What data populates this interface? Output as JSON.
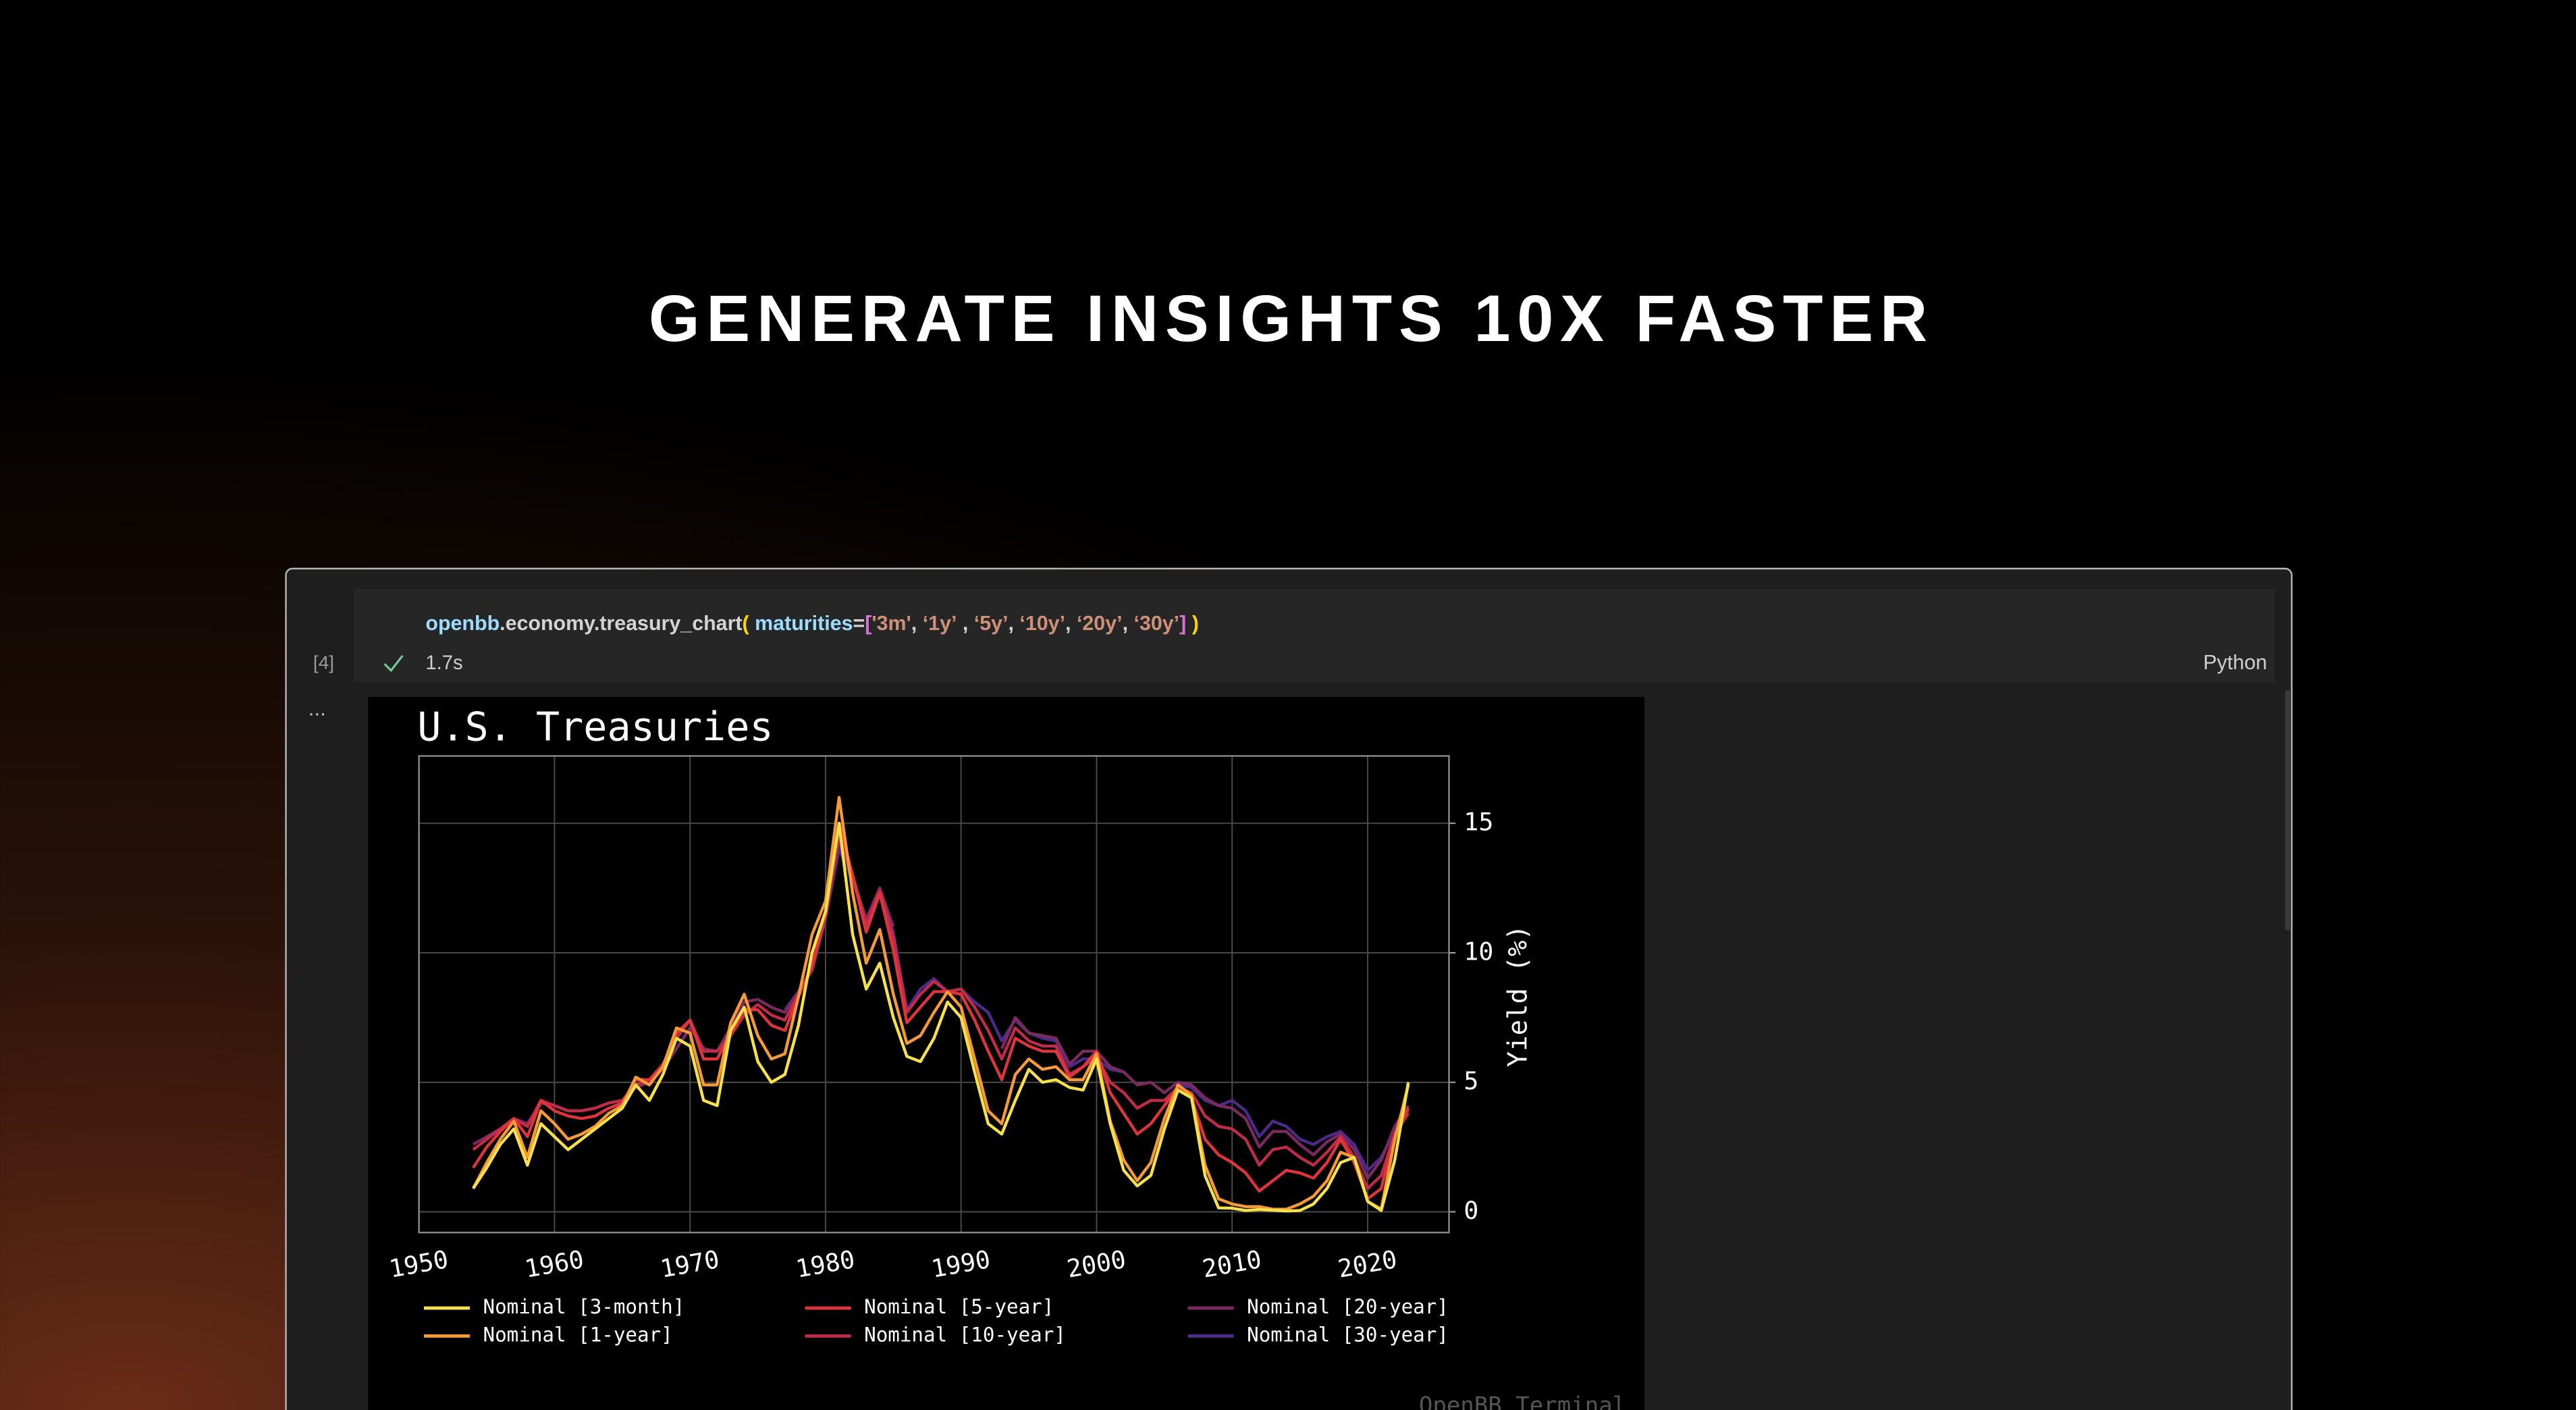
{
  "headline": "GENERATE INSIGHTS 10X FASTER",
  "cell": {
    "number": "[4]",
    "code": [
      "openbb",
      ".economy.treasury_chart",
      "(",
      " maturities",
      "=",
      "[",
      "'3m'",
      ", ",
      "‘1y’",
      " , ",
      "‘5y’",
      ", ",
      "‘10y’",
      ", ",
      "‘20y’",
      ", ",
      "‘30y’",
      "]",
      " )"
    ],
    "duration": "1.7s",
    "language": "Python",
    "output_marker": "...",
    "watermark": "OpenBB Terminal"
  },
  "chart_data": {
    "type": "line",
    "title": "U.S. Treasuries",
    "y_label": "Yield (%)",
    "xlim": [
      1950,
      2026
    ],
    "xticks": [
      1950,
      1960,
      1970,
      1980,
      1990,
      2000,
      2010,
      2020
    ],
    "ylim": [
      -0.8,
      17.6
    ],
    "yticks": [
      0,
      5,
      10,
      15
    ],
    "grid": true,
    "x": [
      1954,
      1955,
      1956,
      1957,
      1958,
      1959,
      1960,
      1961,
      1962,
      1963,
      1964,
      1965,
      1966,
      1967,
      1968,
      1969,
      1970,
      1971,
      1972,
      1973,
      1974,
      1975,
      1976,
      1977,
      1978,
      1979,
      1980,
      1981,
      1982,
      1983,
      1984,
      1985,
      1986,
      1987,
      1988,
      1989,
      1990,
      1991,
      1992,
      1993,
      1994,
      1995,
      1996,
      1997,
      1998,
      1999,
      2000,
      2001,
      2002,
      2003,
      2004,
      2005,
      2006,
      2007,
      2008,
      2009,
      2010,
      2011,
      2012,
      2013,
      2014,
      2015,
      2016,
      2017,
      2018,
      2019,
      2020,
      2021,
      2022,
      2023
    ],
    "series": [
      {
        "name": "Nominal [3-month]",
        "color": "#f7e14b",
        "values": [
          0.9,
          1.7,
          2.6,
          3.2,
          1.8,
          3.4,
          2.9,
          2.4,
          2.8,
          3.2,
          3.6,
          4.0,
          4.9,
          4.3,
          5.3,
          6.7,
          6.4,
          4.3,
          4.1,
          7.0,
          7.9,
          5.8,
          5.0,
          5.3,
          7.2,
          10.0,
          11.6,
          15.0,
          10.7,
          8.6,
          9.6,
          7.5,
          6.0,
          5.8,
          6.7,
          8.1,
          7.5,
          5.4,
          3.4,
          3.0,
          4.3,
          5.5,
          5.0,
          5.1,
          4.8,
          4.7,
          5.9,
          3.4,
          1.6,
          1.0,
          1.4,
          3.2,
          4.7,
          4.4,
          1.4,
          0.15,
          0.14,
          0.05,
          0.09,
          0.06,
          0.03,
          0.05,
          0.3,
          0.9,
          1.9,
          2.1,
          0.4,
          0.05,
          2.0,
          5.0
        ]
      },
      {
        "name": "Nominal [1-year]",
        "color": "#f59a36",
        "values": [
          0.9,
          1.9,
          2.8,
          3.5,
          2.1,
          3.9,
          3.4,
          2.8,
          3.0,
          3.3,
          3.8,
          4.1,
          5.2,
          4.9,
          5.6,
          7.1,
          6.9,
          4.9,
          4.9,
          7.3,
          8.4,
          6.8,
          5.9,
          6.1,
          8.3,
          10.7,
          12.0,
          16.0,
          12.3,
          9.6,
          10.9,
          8.4,
          6.5,
          6.8,
          7.7,
          8.5,
          7.9,
          5.9,
          3.9,
          3.4,
          5.3,
          5.9,
          5.5,
          5.6,
          5.1,
          5.1,
          6.1,
          3.5,
          2.0,
          1.2,
          1.9,
          3.6,
          4.9,
          4.5,
          1.8,
          0.5,
          0.3,
          0.2,
          0.2,
          0.1,
          0.1,
          0.3,
          0.6,
          1.2,
          2.3,
          2.1,
          0.4,
          0.1,
          2.8,
          4.9
        ]
      },
      {
        "name": "Nominal [5-year]",
        "color": "#e0343c",
        "values": [
          1.7,
          2.5,
          3.1,
          3.6,
          2.9,
          4.3,
          3.9,
          3.7,
          3.6,
          3.7,
          4.0,
          4.2,
          5.1,
          5.1,
          5.6,
          6.9,
          7.4,
          5.9,
          5.9,
          6.9,
          7.8,
          7.8,
          7.2,
          7.0,
          8.3,
          9.5,
          11.5,
          15.0,
          13.0,
          10.8,
          12.3,
          10.1,
          7.3,
          7.9,
          8.5,
          8.5,
          8.4,
          7.4,
          6.2,
          5.1,
          6.7,
          6.4,
          6.2,
          6.2,
          5.2,
          5.6,
          6.2,
          4.6,
          3.8,
          3.0,
          3.4,
          4.1,
          4.8,
          4.4,
          2.8,
          2.2,
          1.9,
          1.5,
          0.8,
          1.2,
          1.6,
          1.5,
          1.3,
          1.9,
          2.8,
          1.9,
          0.5,
          0.9,
          3.0,
          4.0
        ]
      },
      {
        "name": "Nominal [10-year]",
        "color": "#c02c48",
        "values": [
          2.4,
          2.8,
          3.2,
          3.6,
          3.3,
          4.3,
          4.1,
          3.9,
          3.9,
          4.0,
          4.2,
          4.3,
          4.9,
          5.1,
          5.7,
          6.7,
          7.4,
          6.2,
          6.2,
          6.8,
          7.6,
          8.0,
          7.6,
          7.4,
          8.4,
          9.4,
          11.4,
          14.5,
          13.0,
          11.1,
          12.4,
          10.6,
          7.7,
          8.4,
          8.9,
          8.5,
          8.6,
          7.9,
          7.0,
          5.9,
          7.1,
          6.6,
          6.4,
          6.4,
          5.3,
          5.6,
          6.0,
          5.0,
          4.6,
          4.0,
          4.3,
          4.3,
          4.8,
          4.6,
          3.7,
          3.3,
          3.2,
          2.8,
          1.8,
          2.4,
          2.5,
          2.1,
          1.8,
          2.3,
          2.9,
          2.1,
          0.9,
          1.4,
          3.0,
          3.8
        ]
      },
      {
        "name": "Nominal [20-year]",
        "color": "#7a2a5e",
        "values": [
          2.6,
          2.9,
          3.2,
          3.6,
          3.4,
          4.2,
          4.1,
          3.9,
          3.9,
          4.0,
          4.2,
          4.3,
          4.8,
          5.0,
          5.5,
          6.3,
          7.1,
          6.3,
          6.2,
          7.1,
          8.1,
          8.2,
          7.9,
          7.7,
          8.5,
          9.3,
          11.4,
          14.3,
          12.9,
          11.3,
          12.5,
          11.0,
          null,
          null,
          null,
          null,
          null,
          null,
          null,
          6.3,
          7.5,
          6.9,
          6.8,
          6.7,
          5.7,
          6.2,
          6.2,
          5.6,
          5.4,
          4.9,
          5.0,
          4.6,
          5.0,
          4.9,
          4.4,
          4.1,
          4.0,
          3.6,
          2.5,
          3.1,
          3.1,
          2.6,
          2.2,
          2.7,
          3.0,
          2.4,
          1.3,
          2.0,
          3.3,
          4.1
        ]
      },
      {
        "name": "Nominal [30-year]",
        "color": "#4b2a8a",
        "values": [
          null,
          null,
          null,
          null,
          null,
          null,
          null,
          null,
          null,
          null,
          null,
          null,
          null,
          null,
          null,
          null,
          null,
          null,
          null,
          null,
          null,
          null,
          null,
          7.8,
          8.5,
          9.3,
          11.3,
          14.0,
          12.8,
          11.2,
          12.4,
          10.8,
          7.8,
          8.6,
          9.0,
          8.5,
          8.6,
          8.1,
          7.7,
          6.6,
          7.4,
          6.9,
          6.7,
          6.6,
          5.6,
          5.9,
          5.9,
          5.5,
          5.4,
          null,
          null,
          null,
          4.9,
          4.8,
          4.3,
          4.1,
          4.3,
          3.9,
          2.9,
          3.5,
          3.3,
          2.8,
          2.6,
          2.9,
          3.1,
          2.6,
          1.6,
          2.1,
          3.1,
          3.9
        ]
      }
    ]
  }
}
